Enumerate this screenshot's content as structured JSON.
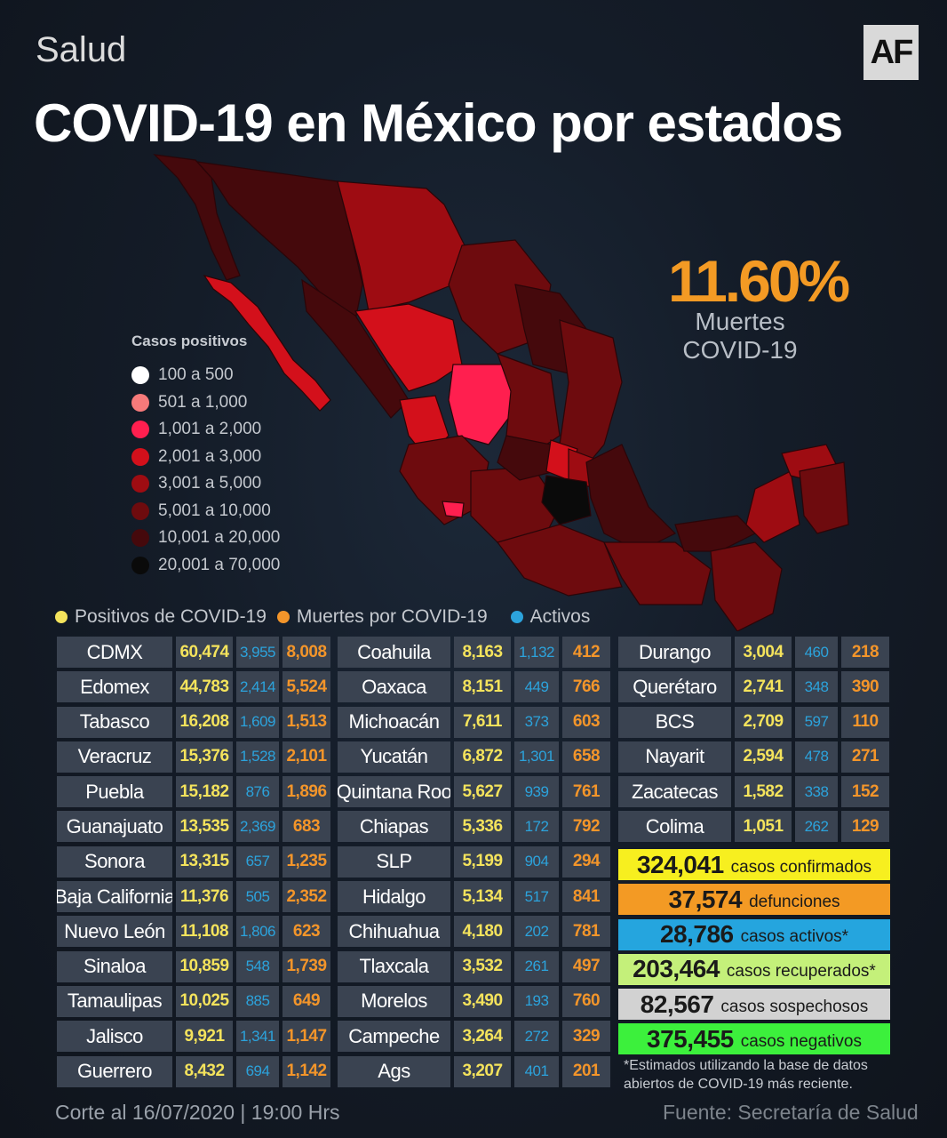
{
  "header": {
    "section": "Salud",
    "logo": "AF",
    "title": "COVID-19 en México por estados"
  },
  "stat": {
    "value": "11.60%",
    "label_line1": "Muertes",
    "label_line2": "COVID-19"
  },
  "legend": {
    "title": "Casos positivos",
    "items": [
      {
        "label": "100  a  500",
        "color": "#ffffff"
      },
      {
        "label": "501  a  1,000",
        "color": "#f77a7a"
      },
      {
        "label": "1,001 a 2,000",
        "color": "#ff1f4f"
      },
      {
        "label": "2,001 a 3,000",
        "color": "#d3101b"
      },
      {
        "label": "3,001  a  5,000",
        "color": "#9e0c12"
      },
      {
        "label": "5,001 a  10,000",
        "color": "#6e0b0e"
      },
      {
        "label": "10,001  a  20,000",
        "color": "#45090c"
      },
      {
        "label": "20,001  a  70,000",
        "color": "#0a0a0a"
      }
    ]
  },
  "keys": [
    {
      "label": "Positivos de COVID-19",
      "color": "#f4e35c"
    },
    {
      "label": "Muertes por COVID-19",
      "color": "#f3952a"
    },
    {
      "label": "Activos",
      "color": "#2ca3dc"
    }
  ],
  "colors": {
    "positivos": "#f4e35c",
    "muertes": "#f3952a",
    "activos": "#2ca3dc",
    "accent": "#f39a24"
  },
  "table": {
    "col1": [
      [
        "CDMX",
        "60,474",
        "3,955",
        "8,008"
      ],
      [
        "Edomex",
        "44,783",
        "2,414",
        "5,524"
      ],
      [
        "Tabasco",
        "16,208",
        "1,609",
        "1,513"
      ],
      [
        "Veracruz",
        "15,376",
        "1,528",
        "2,101"
      ],
      [
        "Puebla",
        "15,182",
        "876",
        "1,896"
      ],
      [
        "Guanajuato",
        "13,535",
        "2,369",
        "683"
      ],
      [
        "Sonora",
        "13,315",
        "657",
        "1,235"
      ],
      [
        "Baja California",
        "11,376",
        "505",
        "2,352"
      ],
      [
        "Nuevo León",
        "11,108",
        "1,806",
        "623"
      ],
      [
        "Sinaloa",
        "10,859",
        "548",
        "1,739"
      ],
      [
        "Tamaulipas",
        "10,025",
        "885",
        "649"
      ],
      [
        "Jalisco",
        "9,921",
        "1,341",
        "1,147"
      ],
      [
        "Guerrero",
        "8,432",
        "694",
        "1,142"
      ]
    ],
    "col2": [
      [
        "Coahuila",
        "8,163",
        "1,132",
        "412"
      ],
      [
        "Oaxaca",
        "8,151",
        "449",
        "766"
      ],
      [
        "Michoacán",
        "7,611",
        "373",
        "603"
      ],
      [
        "Yucatán",
        "6,872",
        "1,301",
        "658"
      ],
      [
        "Quintana Roo",
        "5,627",
        "939",
        "761"
      ],
      [
        "Chiapas",
        "5,336",
        "172",
        "792"
      ],
      [
        "SLP",
        "5,199",
        "904",
        "294"
      ],
      [
        "Hidalgo",
        "5,134",
        "517",
        "841"
      ],
      [
        "Chihuahua",
        "4,180",
        "202",
        "781"
      ],
      [
        "Tlaxcala",
        "3,532",
        "261",
        "497"
      ],
      [
        "Morelos",
        "3,490",
        "193",
        "760"
      ],
      [
        "Campeche",
        "3,264",
        "272",
        "329"
      ],
      [
        "Ags",
        "3,207",
        "401",
        "201"
      ]
    ],
    "col3": [
      [
        "Durango",
        "3,004",
        "460",
        "218"
      ],
      [
        "Querétaro",
        "2,741",
        "348",
        "390"
      ],
      [
        "BCS",
        "2,709",
        "597",
        "110"
      ],
      [
        "Nayarit",
        "2,594",
        "478",
        "271"
      ],
      [
        "Zacatecas",
        "1,582",
        "338",
        "152"
      ],
      [
        "Colima",
        "1,051",
        "262",
        "129"
      ]
    ]
  },
  "summary": [
    {
      "value": "324,041",
      "label": "casos confirmados",
      "color": "#f7ef1f"
    },
    {
      "value": "37,574",
      "label": "defunciones",
      "color": "#f39a24"
    },
    {
      "value": "28,786",
      "label": "casos activos*",
      "color": "#25a5de"
    },
    {
      "value": "203,464",
      "label": "casos recuperados*",
      "color": "#c4f07a"
    },
    {
      "value": "82,567",
      "label": "casos sospechosos",
      "color": "#d2d2d2"
    },
    {
      "value": "375,455",
      "label": "casos negativos",
      "color": "#3cf03c"
    }
  ],
  "note": "*Estimados utilizando la base de datos abiertos de COVID-19 más reciente.",
  "footer": {
    "cutoff": "Corte al 16/07/2020 | 19:00 Hrs",
    "source": "Fuente: Secretaría de Salud"
  }
}
